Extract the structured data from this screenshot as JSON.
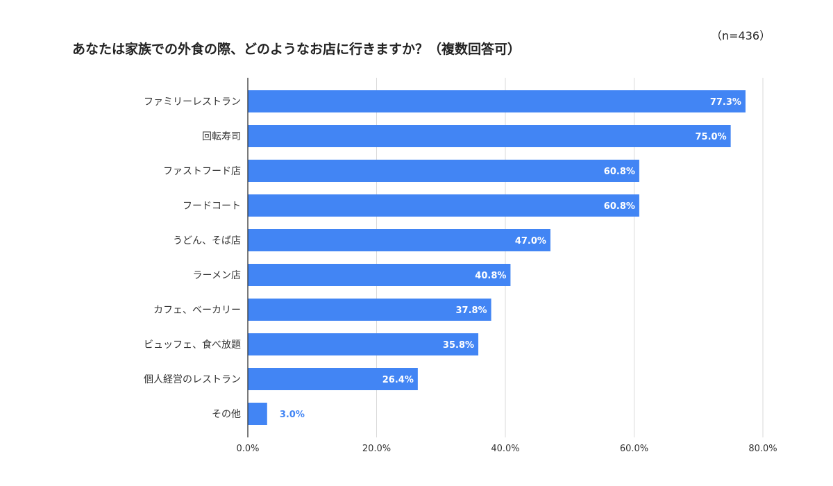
{
  "header": {
    "sample_size": "（n=436）"
  },
  "chart_data": {
    "type": "bar",
    "orientation": "horizontal",
    "title": "あなたは家族での外食の際、どのようなお店に行きますか？（複数回答可）",
    "categories": [
      "ファミリーレストラン",
      "回転寿司",
      "ファストフード店",
      "フードコート",
      "うどん、そば店",
      "ラーメン店",
      "カフェ、ベーカリー",
      "ビュッフェ、食べ放題",
      "個人経営のレストラン",
      "その他"
    ],
    "values": [
      77.3,
      75.0,
      60.8,
      60.8,
      47.0,
      40.8,
      37.8,
      35.8,
      26.4,
      3.0
    ],
    "value_labels": [
      "77.3%",
      "75.0%",
      "60.8%",
      "60.8%",
      "47.0%",
      "40.8%",
      "37.8%",
      "35.8%",
      "26.4%",
      "3.0%"
    ],
    "xlim": [
      0,
      80
    ],
    "xticks": [
      "0.0%",
      "20.0%",
      "40.0%",
      "60.0%",
      "80.0%"
    ],
    "grid": true,
    "colors": {
      "bar": "#4285f4",
      "label_inside": "#ffffff",
      "label_outside": "#4285f4",
      "grid": "#d9d9d9",
      "axis": "#333333"
    }
  }
}
